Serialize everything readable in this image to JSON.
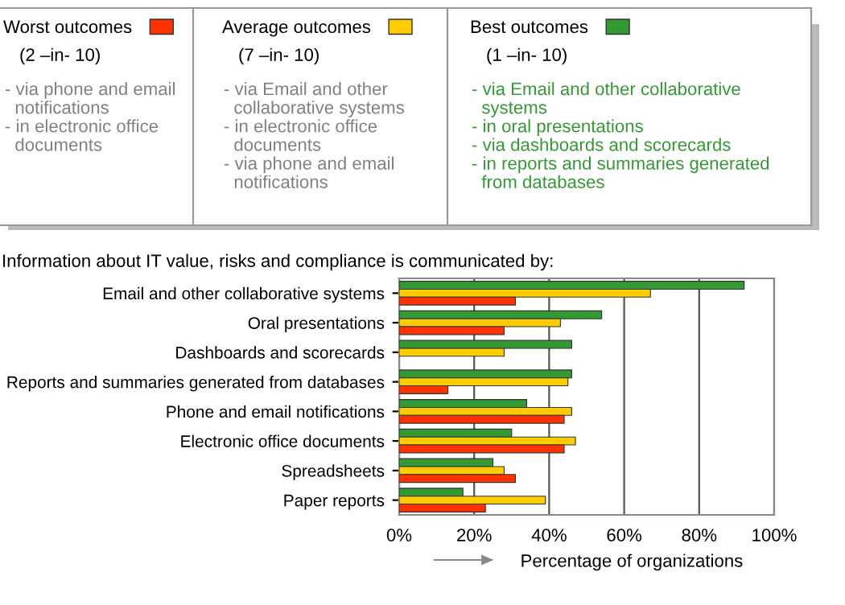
{
  "chart_data": {
    "type": "bar",
    "orientation": "horizontal",
    "title": "Information about IT value, risks and compliance is communicated by:",
    "xlabel": "Percentage of organizations",
    "categories": [
      "Email and other collaborative systems",
      "Oral presentations",
      "Dashboards and scorecards",
      "Reports and summaries generated from databases",
      "Phone and email notifications",
      "Electronic office documents",
      "Spreadsheets",
      "Paper reports"
    ],
    "series": [
      {
        "name": "Best outcomes",
        "color": "#339933",
        "values": [
          92,
          54,
          46,
          46,
          34,
          30,
          25,
          17
        ]
      },
      {
        "name": "Average outcomes",
        "color": "#ffcc00",
        "values": [
          67,
          43,
          28,
          45,
          46,
          47,
          28,
          39
        ]
      },
      {
        "name": "Worst outcomes",
        "color": "#ff3300",
        "values": [
          31,
          28,
          null,
          13,
          44,
          44,
          31,
          23
        ]
      }
    ],
    "xlim": [
      0,
      100
    ],
    "xticks": [
      {
        "value": 0,
        "label": "0%"
      },
      {
        "value": 20,
        "label": "20%"
      },
      {
        "value": 40,
        "label": "40%"
      },
      {
        "value": 60,
        "label": "60%"
      },
      {
        "value": 80,
        "label": "80%"
      },
      {
        "value": 100,
        "label": "100%"
      }
    ],
    "grid": "x",
    "legend": "top",
    "annotations": [
      "(1 –in- 10)",
      "(7 –in- 10)",
      "(2 –in- 10)",
      "- via Email and other collaborative\n  systems\n- in oral presentations\n- via dashboards and scorecards\n- in reports and summaries generated\n  from databases",
      "- via Email and other\n  collaborative systems\n- in electronic office\n  documents\n- via phone and email\n  notifications",
      "- via phone and email\n  notifications\n- in electronic office\n  documents"
    ]
  }
}
